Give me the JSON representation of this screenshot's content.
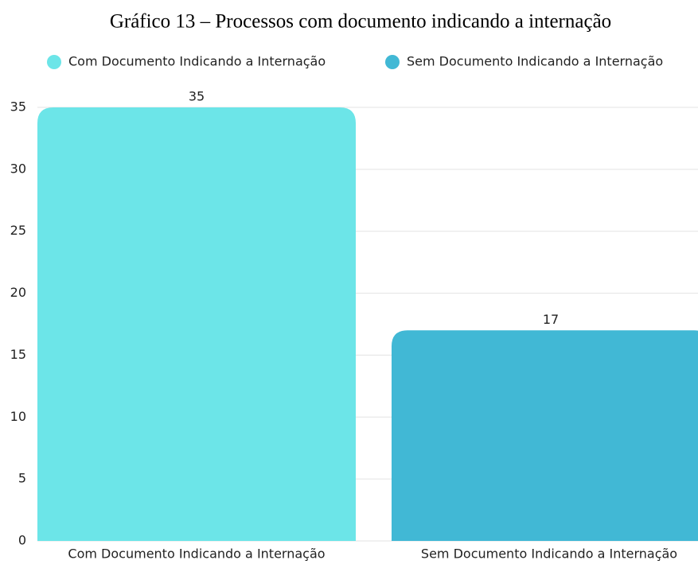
{
  "chart_data": {
    "type": "bar",
    "title": "Gráfico 13 – Processos com documento indicando a internação",
    "categories": [
      "Com Documento Indicando a Internação",
      "Sem Documento Indicando a Internação"
    ],
    "values": [
      35,
      17
    ],
    "colors": [
      "#6ce5e8",
      "#41b8d5"
    ],
    "ylim": [
      0,
      35
    ],
    "yticks": [
      0,
      5,
      10,
      15,
      20,
      25,
      30,
      35
    ],
    "grid": true,
    "legend": "top"
  }
}
